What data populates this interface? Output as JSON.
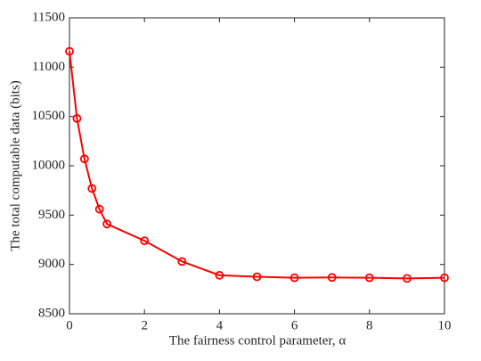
{
  "chart_data": {
    "type": "line",
    "xlabel": "The fairness control parameter, α",
    "ylabel": "The total computable data (bits)",
    "x": [
      0,
      0.2,
      0.4,
      0.6,
      0.8,
      1,
      2,
      3,
      4,
      5,
      6,
      7,
      8,
      9,
      10
    ],
    "values": [
      11160,
      10480,
      10070,
      9770,
      9560,
      9410,
      9240,
      9030,
      8890,
      8875,
      8865,
      8868,
      8865,
      8858,
      8865
    ],
    "color": "#ff0000",
    "marker": "circle",
    "xlim": [
      0,
      10
    ],
    "xticks": [
      0,
      2,
      4,
      6,
      8,
      10
    ],
    "ylim": [
      8500,
      11500
    ],
    "yticks": [
      8500,
      9000,
      9500,
      10000,
      10500,
      11000,
      11500
    ],
    "grid": false
  }
}
